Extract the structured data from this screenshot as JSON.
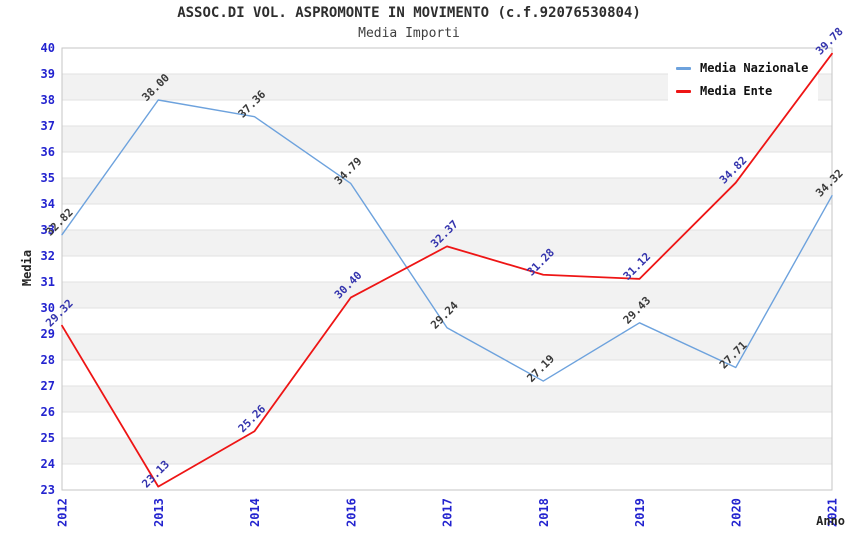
{
  "chart_data": {
    "type": "line",
    "title": "ASSOC.DI VOL. ASPROMONTE IN MOVIMENTO (c.f.92076530804)",
    "subtitle": "Media Importi",
    "xlabel": "Anno",
    "ylabel": "Media",
    "categories": [
      "2012",
      "2013",
      "2014",
      "2016",
      "2017",
      "2018",
      "2019",
      "2020",
      "2021"
    ],
    "series": [
      {
        "name": "Media Nazionale",
        "color": "#6da2dd",
        "label_color": "#3a3a3a",
        "line_width": 1.4,
        "values": [
          32.82,
          38.0,
          37.36,
          34.79,
          29.24,
          27.19,
          29.43,
          27.71,
          34.32
        ]
      },
      {
        "name": "Media Ente",
        "color": "#ee1515",
        "label_color": "#3434ad",
        "line_width": 1.8,
        "values": [
          29.32,
          23.13,
          25.26,
          30.4,
          32.37,
          31.28,
          31.12,
          34.82,
          39.78
        ]
      }
    ],
    "ylim": [
      23,
      40
    ],
    "ytick_step": 1,
    "grid": "horizontal-bands-on",
    "legend_position": "top-right",
    "tick_color": "#2323cf",
    "band_color": "#f2f2f2",
    "gridline_color": "#e2e2e2",
    "border_color": "#c6c6c6"
  }
}
